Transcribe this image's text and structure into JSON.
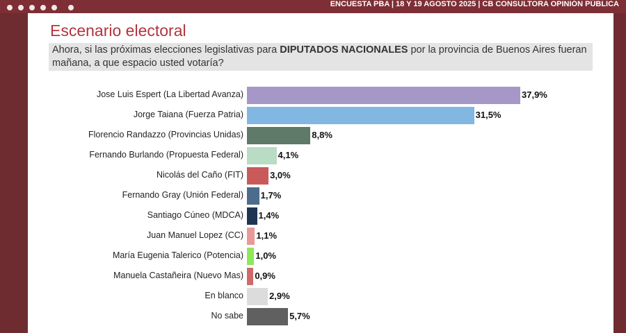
{
  "header": "ENCUESTA PBA | 18 Y 19  AGOSTO 2025 | CB CONSULTORA OPINIÓN PÚBLICA",
  "chart_data": {
    "type": "bar",
    "orientation": "horizontal",
    "title": "Escenario electoral",
    "subtitle": [
      "Ahora, si las próximas elecciones legislativas para ",
      "DIPUTADOS NACIONALES",
      " por la provincia de Buenos Aires fueran mañana, a que espacio usted votaría?"
    ],
    "categories": [
      "Jose Luis Espert (La Libertad Avanza)",
      "Jorge Taiana (Fuerza Patria)",
      "Florencio Randazzo (Provincias Unidas)",
      "Fernando Burlando (Propuesta Federal)",
      "Nicolás del Caño (FIT)",
      "Fernando Gray (Unión Federal)",
      "Santiago Cúneo (MDCA)",
      "Juan Manuel Lopez (CC)",
      "María Eugenia Talerico (Potencia)",
      "Manuela Castañeira (Nuevo Mas)",
      "En blanco",
      "No sabe"
    ],
    "values": [
      37.9,
      31.5,
      8.8,
      4.1,
      3.0,
      1.7,
      1.4,
      1.1,
      1.0,
      0.9,
      2.9,
      5.7
    ],
    "value_labels": [
      "37,9%",
      "31,5%",
      "8,8%",
      "4,1%",
      "3,0%",
      "1,7%",
      "1,4%",
      "1,1%",
      "1,0%",
      "0,9%",
      "2,9%",
      "5,7%"
    ],
    "colors": [
      "#a597c8",
      "#82b6e3",
      "#5f7a68",
      "#b9dcc4",
      "#c95a5a",
      "#4b6c8c",
      "#1e3552",
      "#e89a9a",
      "#8de85a",
      "#d06a6a",
      "#dcdcdc",
      "#606060"
    ]
  }
}
